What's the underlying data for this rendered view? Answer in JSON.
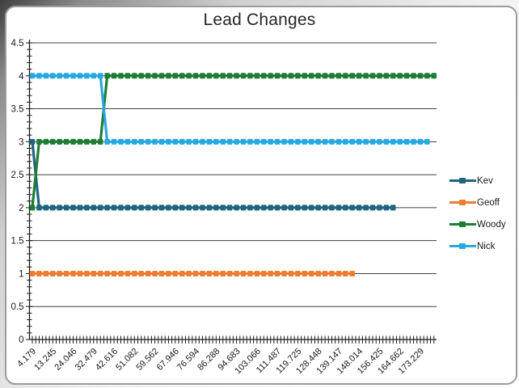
{
  "title": "Lead Changes",
  "chart_data": {
    "type": "line",
    "title": "Lead Changes",
    "xlabel": "",
    "ylabel": "",
    "ylim": [
      0,
      4.5
    ],
    "y_tick_labels": [
      "4.5",
      "4",
      "3.5",
      "3",
      "2.5",
      "2",
      "1.5",
      "1",
      "0.5",
      "0"
    ],
    "y_minor_tick_step": 0.1,
    "grid": "horizontal gridlines every 0.5",
    "legend_position": "right",
    "legend_order": [
      "Kev",
      "Geoff",
      "Woody",
      "Nick"
    ],
    "x_labels": [
      "4.179",
      "13.245",
      "24.046",
      "32.479",
      "42.616",
      "51.082",
      "59.562",
      "67.946",
      "76.594",
      "86.288",
      "94.683",
      "103.066",
      "111.487",
      "119.725",
      "128.448",
      "139.147",
      "148.014",
      "156.425",
      "164.662",
      "173.229"
    ],
    "x_label_every_n_points": 3,
    "total_points": 60,
    "line_style": "thick dashed step lines with square markers at every point",
    "series": [
      {
        "name": "Kev",
        "color": "#1F6480",
        "segments": [
          {
            "from_cat": 0,
            "to_cat": 0,
            "value": 3
          },
          {
            "from_cat": 1,
            "to_cat": 53,
            "value": 2
          }
        ]
      },
      {
        "name": "Geoff",
        "color": "#ED7D31",
        "segments": [
          {
            "from_cat": 0,
            "to_cat": 47,
            "value": 1
          }
        ]
      },
      {
        "name": "Woody",
        "color": "#1E7C34",
        "segments": [
          {
            "from_cat": 0,
            "to_cat": 0,
            "value": 2
          },
          {
            "from_cat": 1,
            "to_cat": 10,
            "value": 3
          },
          {
            "from_cat": 11,
            "to_cat": 59,
            "value": 4
          }
        ]
      },
      {
        "name": "Nick",
        "color": "#27A9E0",
        "segments": [
          {
            "from_cat": 0,
            "to_cat": 10,
            "value": 4
          },
          {
            "from_cat": 11,
            "to_cat": 58,
            "value": 3
          }
        ]
      }
    ],
    "colors": {
      "gridline": "#3F3F3F",
      "axis": "#1A1A1A",
      "tick": "#1A1A1A",
      "label_text": "#1A1A1A",
      "title_text": "#262626",
      "frame_border": "#9B9B9B",
      "background": "#FFFFFF"
    }
  }
}
